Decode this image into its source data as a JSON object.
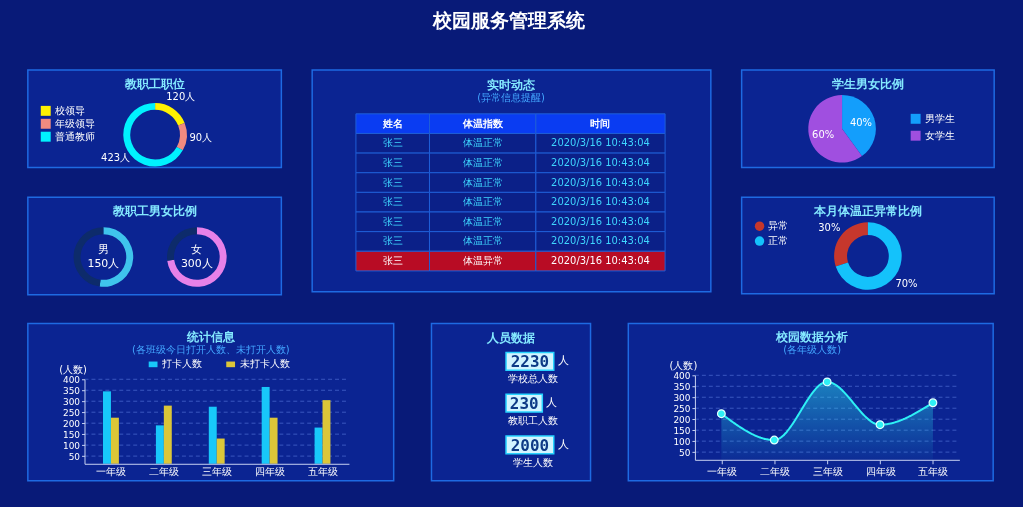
{
  "chart_data": [
    {
      "type": "other",
      "title": "校园服务管理系统"
    },
    {
      "type": "donut",
      "title": "教职工职位",
      "categories": [
        "校领导",
        "年级领导",
        "普通教师"
      ],
      "values": [
        120,
        90,
        423
      ],
      "colors": [
        "#fff100",
        "#f08a80",
        "#00f2fe"
      ],
      "value_labels": [
        "120人",
        "90人",
        "423人"
      ],
      "legend": "top left"
    },
    {
      "type": "other",
      "title": "实时动态",
      "subtitle": "(异常信息提醒)",
      "categories": [
        "姓名",
        "体温指数",
        "时间"
      ],
      "cell_labels": [
        [
          "张三",
          "体温正常",
          "2020/3/16 10:43:04"
        ],
        [
          "张三",
          "体温正常",
          "2020/3/16 10:43:04"
        ],
        [
          "张三",
          "体温正常",
          "2020/3/16 10:43:04"
        ],
        [
          "张三",
          "体温正常",
          "2020/3/16 10:43:04"
        ],
        [
          "张三",
          "体温正常",
          "2020/3/16 10:43:04"
        ],
        [
          "张三",
          "体温正常",
          "2020/3/16 10:43:04"
        ],
        [
          "张三",
          "体温异常",
          "2020/3/16 10:43:04"
        ]
      ],
      "colors": [
        "#0a3cf2",
        "#0a3cf2",
        "#0a3cf2",
        "#0b2088",
        "#0b2088",
        "#0b2088",
        "#0b2088",
        "#0b2088",
        "#0b2088",
        "#0b2088",
        "#0b2088",
        "#0b2088",
        "#0b2088",
        "#0b2088",
        "#0b2088",
        "#0b2088",
        "#0b2088",
        "#0b2088",
        "#0b2088",
        "#0b2088",
        "#0b2088",
        "#b80c24",
        "#b80c24",
        "#b80c24"
      ]
    },
    {
      "type": "pie",
      "title": "学生男女比例",
      "categories": [
        "男学生",
        "女学生"
      ],
      "values": [
        40,
        60
      ],
      "colors": [
        "#139efc",
        "#a04fe0"
      ],
      "value_labels": [
        "40%",
        "60%"
      ],
      "legend": "right"
    },
    {
      "type": "donut",
      "title": "教职工男女比例",
      "categories": [
        null,
        null
      ],
      "values": [
        52,
        48
      ],
      "colors": [
        "#3fc4ec",
        "#0d2b6b"
      ],
      "annotations": [
        "男",
        "150人"
      ]
    },
    {
      "type": "donut",
      "categories": [
        null,
        null
      ],
      "values": [
        73,
        27
      ],
      "colors": [
        "#e681e8",
        "#0d2b6b"
      ],
      "annotations": [
        "女",
        "300人"
      ]
    },
    {
      "type": "donut",
      "title": "本月体温正异常比例",
      "categories": [
        "异常",
        "正常"
      ],
      "values": [
        30,
        70
      ],
      "colors": [
        "#c6372c",
        "#14c2fb"
      ],
      "value_labels": [
        "30%",
        "70%"
      ],
      "legend": "top left"
    },
    {
      "type": "bar",
      "title": "统计信息",
      "subtitle": "(各班级今日打开人数、未打开人数)",
      "ylabel": "(人数)",
      "categories": [
        "一年级",
        "二年级",
        "三年级",
        "四年级",
        "五年级"
      ],
      "series": [
        {
          "name": "打卡人数",
          "color": "#18c8fa",
          "values": [
            345,
            190,
            275,
            365,
            180
          ]
        },
        {
          "name": "未打卡人数",
          "color": "#dcc638",
          "values": [
            225,
            280,
            130,
            225,
            305
          ]
        }
      ],
      "ylim": [
        15,
        400
      ],
      "yticks": [
        50,
        100,
        150,
        200,
        250,
        300,
        350,
        400
      ],
      "grid": "y",
      "legend": "top"
    },
    {
      "type": "other",
      "title": "人员数据",
      "categories": [
        "学校总人数",
        "教职工人数",
        "学生人数"
      ],
      "values": [
        2230,
        230,
        2000
      ],
      "annotations": [
        "人",
        "人",
        "人"
      ],
      "data_labels": true
    },
    {
      "type": "area",
      "title": "校园数据分析",
      "subtitle": "(各年级人数)",
      "ylabel": "(人数)",
      "categories": [
        "一年级",
        "二年级",
        "三年级",
        "四年级",
        "五年级"
      ],
      "values": [
        225,
        105,
        370,
        175,
        275
      ],
      "color": "#2ef0f5",
      "ylim": [
        15,
        400
      ],
      "yticks": [
        50,
        100,
        150,
        200,
        250,
        300,
        350,
        400
      ],
      "grid": "y",
      "marker": "circle"
    }
  ]
}
